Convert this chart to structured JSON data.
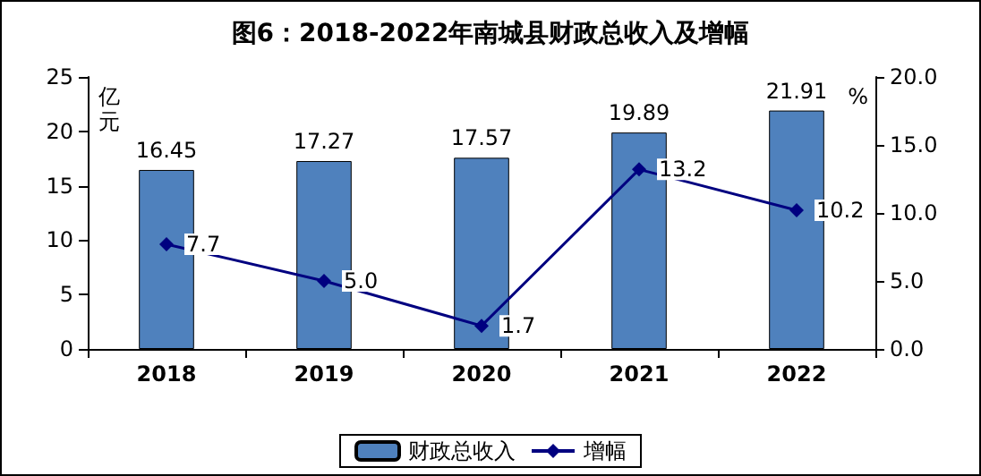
{
  "chart_data": {
    "type": "bar",
    "title": "图6：2018-2022年南城县财政总收入及增幅",
    "categories": [
      "2018",
      "2019",
      "2020",
      "2021",
      "2022"
    ],
    "series": [
      {
        "name": "财政总收入",
        "color": "#4f81bd",
        "values": [
          16.45,
          17.27,
          17.57,
          19.89,
          21.91
        ],
        "value_labels": [
          "16.45",
          "17.27",
          "17.57",
          "19.89",
          "21.91"
        ]
      },
      {
        "name": "增幅",
        "type": "line",
        "axis": "y2",
        "color": "#000080",
        "marker": "diamond",
        "values": [
          7.7,
          5.0,
          1.7,
          13.2,
          10.2
        ],
        "value_labels": [
          "7.7",
          "5.0",
          "1.7",
          "13.2",
          "10.2"
        ]
      }
    ],
    "ylabel": "亿元",
    "y2label": "%",
    "ylim": [
      0,
      25
    ],
    "yticks": [
      0,
      5,
      10,
      15,
      20,
      25
    ],
    "y2lim": [
      0,
      20
    ],
    "y2ticks": [
      {
        "value": 0,
        "label": "0.0"
      },
      {
        "value": 5,
        "label": "5.0"
      },
      {
        "value": 10,
        "label": "10.0"
      },
      {
        "value": 15,
        "label": "15.0"
      },
      {
        "value": 20,
        "label": "20.0"
      }
    ],
    "grid": false,
    "legend": "bottom"
  }
}
